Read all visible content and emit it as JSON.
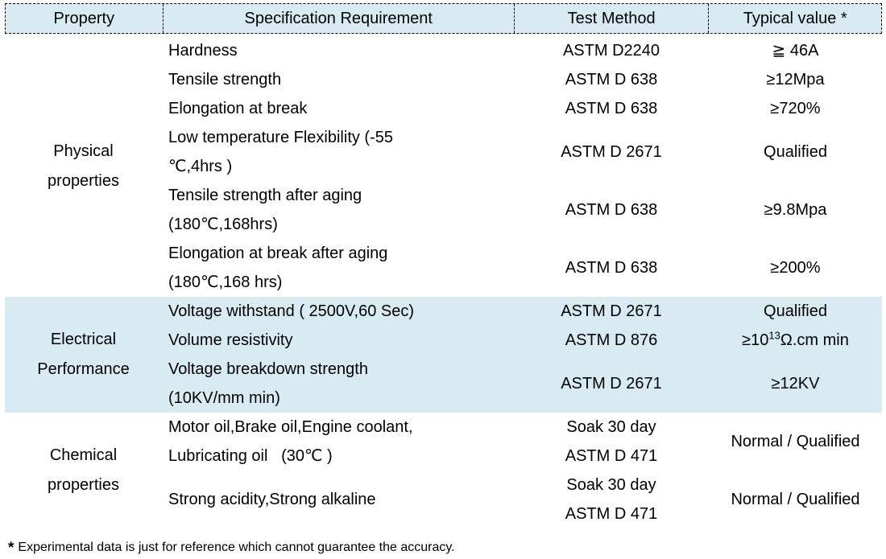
{
  "table": {
    "headers": [
      "Property",
      "Specification Requirement",
      "Test Method",
      "Typical value *"
    ],
    "sections": [
      {
        "property": "Physical\nproperties",
        "rows": [
          {
            "spec": "Hardness",
            "method": "ASTM D2240",
            "value": "≧ 46A"
          },
          {
            "spec": "Tensile strength",
            "method": "ASTM D 638",
            "value": "≥12Mpa"
          },
          {
            "spec": "Elongation at break",
            "method": "ASTM D 638",
            "value": "≥720%"
          },
          {
            "spec": "Low temperature Flexibility (-55\n℃,4hrs )",
            "method": "ASTM D 2671",
            "value": "Qualified"
          },
          {
            "spec": "Tensile strength after aging\n(180℃,168hrs)",
            "method": "ASTM D 638",
            "value": "≥9.8Mpa"
          },
          {
            "spec": "Elongation at break after aging\n(180℃,168 hrs)",
            "method": "ASTM D 638",
            "value": "≥200%"
          }
        ]
      },
      {
        "property": "Electrical\nPerformance",
        "rows": [
          {
            "spec": "Voltage withstand ( 2500V,60 Sec)",
            "method": "ASTM D 2671",
            "value": "Qualified"
          },
          {
            "spec": "Volume resistivity",
            "method": "ASTM D 876",
            "value_pre": "≥10",
            "value_sup": "13",
            "value_post": "Ω.cm min"
          },
          {
            "spec": "Voltage breakdown strength\n(10KV/mm min)",
            "method": "ASTM D 2671",
            "value": "≥12KV"
          }
        ]
      },
      {
        "property": "Chemical\nproperties",
        "rows": [
          {
            "spec": "Motor oil,Brake oil,Engine coolant,\nLubricating oil   (30℃ )",
            "method": "Soak 30 day\nASTM D 471",
            "value": "Normal / Qualified"
          },
          {
            "spec": "Strong acidity,Strong alkaline",
            "method": "Soak 30 day\nASTM D 471",
            "value": "Normal / Qualified"
          }
        ]
      }
    ]
  },
  "footnote": {
    "marker": "*",
    "text": "Experimental data is just for reference which cannot guarantee the accuracy."
  },
  "colors": {
    "band": "#d9ebf2",
    "text": "#000000"
  }
}
